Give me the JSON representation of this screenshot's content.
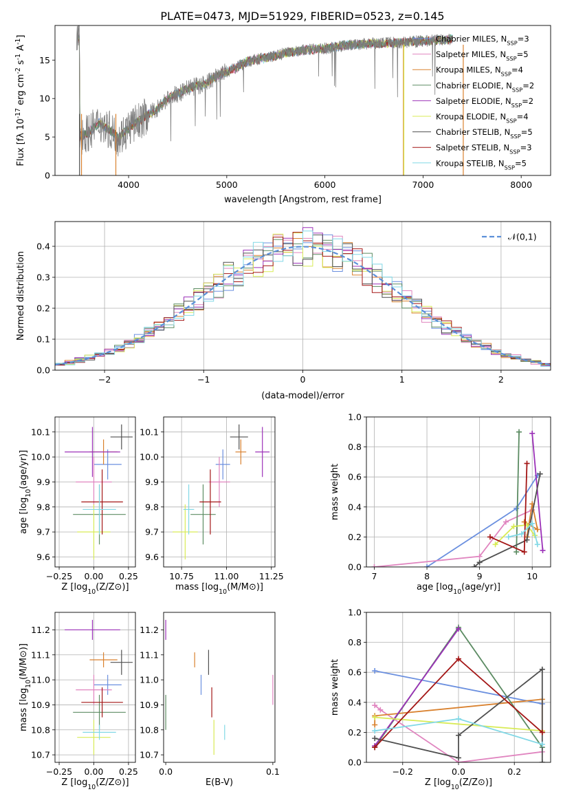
{
  "title": "PLATE=0473, MJD=51929, FIBERID=0523, z=0.145",
  "colors": {
    "Chabrier MILES": "#6a8fdf",
    "Salpeter MILES": "#e084bf",
    "Kroupa MILES": "#d9812e",
    "Chabrier ELODIE": "#5b8b62",
    "Salpeter ELODIE": "#9b30b8",
    "Kroupa ELODIE": "#d8eb55",
    "Chabrier STELIB": "#4f4f4f",
    "Salpeter STELIB": "#a31515",
    "Kroupa STELIB": "#81d8e6"
  },
  "chart_data": [
    {
      "id": "spectrum",
      "type": "line",
      "title": "PLATE=0473, MJD=51929, FIBERID=0523, z=0.145",
      "xlabel": "wavelength [Angstrom, rest frame]",
      "ylabel": "Flux [f$_\\lambda 10^{-17}$ erg cm$^{-2}$ s$^{-1}$ A$^{-1}$]",
      "xlim": [
        3250,
        8300
      ],
      "ylim": [
        0,
        19.5
      ],
      "xticks": [
        "4000",
        "5000",
        "6000",
        "7000",
        "8000"
      ],
      "yticks": [
        "0",
        "5",
        "10",
        "15"
      ],
      "grid": false,
      "legend": "top-right",
      "continuum": [
        [
          3500,
          5.0
        ],
        [
          3600,
          5.7
        ],
        [
          3700,
          6.8
        ],
        [
          3800,
          6.0
        ],
        [
          3900,
          4.9
        ],
        [
          4000,
          6.2
        ],
        [
          4100,
          7.0
        ],
        [
          4200,
          7.9
        ],
        [
          4300,
          8.8
        ],
        [
          4400,
          10.0
        ],
        [
          4500,
          10.6
        ],
        [
          4600,
          11.3
        ],
        [
          4800,
          12.0
        ],
        [
          4900,
          13.0
        ],
        [
          5000,
          13.5
        ],
        [
          5100,
          14.0
        ],
        [
          5200,
          14.8
        ],
        [
          5400,
          15.3
        ],
        [
          5600,
          15.9
        ],
        [
          5800,
          16.3
        ],
        [
          6000,
          16.5
        ],
        [
          6200,
          16.9
        ],
        [
          6400,
          17.1
        ],
        [
          6600,
          17.2
        ],
        [
          6800,
          17.3
        ],
        [
          7000,
          17.5
        ],
        [
          7200,
          17.6
        ],
        [
          7300,
          17.8
        ]
      ],
      "series": [
        {
          "name": "Chabrier MILES, N$_{SSP}$=3"
        },
        {
          "name": "Salpeter MILES, N$_{SSP}$=5"
        },
        {
          "name": "Kroupa MILES, N$_{SSP}$=4"
        },
        {
          "name": "Chabrier ELODIE, N$_{SSP}$=2"
        },
        {
          "name": "Salpeter ELODIE, N$_{SSP}$=2"
        },
        {
          "name": "Kroupa ELODIE, N$_{SSP}$=4"
        },
        {
          "name": "Chabrier STELIB, N$_{SSP}$=5"
        },
        {
          "name": "Salpeter STELIB, N$_{SSP}$=3"
        },
        {
          "name": "Kroupa STELIB, N$_{SSP}$=5"
        }
      ]
    },
    {
      "id": "residuals",
      "type": "line",
      "xlabel": "(data-model)/error",
      "ylabel": "Normed distribution",
      "xlim": [
        -2.5,
        2.5
      ],
      "ylim": [
        0,
        0.48
      ],
      "xticks": [
        "−2",
        "−1",
        "0",
        "1",
        "2"
      ],
      "yticks": [
        "0.0",
        "0.1",
        "0.2",
        "0.3",
        "0.4"
      ],
      "grid": true,
      "legend": "top-right",
      "legend_label": "$\\mathcal{N}(0,1)$",
      "bin_edges": [
        -2.5,
        2.5
      ],
      "bins": 50
    },
    {
      "id": "age-vs-Z",
      "type": "scatter",
      "xlabel": "Z [log$_{10}$(Z/Z$_\\odot$)]",
      "ylabel": "age  [log$_{10}$(age/yr)]",
      "xlim": [
        -0.28,
        0.3
      ],
      "ylim": [
        9.56,
        10.16
      ],
      "xticks": [
        "−0.25",
        "0.00",
        "0.25"
      ],
      "yticks": [
        "9.6",
        "9.7",
        "9.8",
        "9.9",
        "10.0",
        "10.1"
      ],
      "grid": true,
      "points": [
        {
          "s": "Chabrier MILES",
          "x": 0.1,
          "xe": 0.1,
          "y": 9.97,
          "ye": 0.06
        },
        {
          "s": "Salpeter MILES",
          "x": 0.0,
          "xe": 0.13,
          "y": 9.9,
          "ye": 0.1
        },
        {
          "s": "Kroupa MILES",
          "x": 0.07,
          "xe": 0.1,
          "y": 10.02,
          "ye": 0.05
        },
        {
          "s": "Chabrier ELODIE",
          "x": 0.04,
          "xe": 0.19,
          "y": 9.77,
          "ye": 0.12
        },
        {
          "s": "Salpeter ELODIE",
          "x": -0.01,
          "xe": 0.2,
          "y": 10.02,
          "ye": 0.1
        },
        {
          "s": "Kroupa ELODIE",
          "x": 0.0,
          "xe": 0.12,
          "y": 9.7,
          "ye": 0.11
        },
        {
          "s": "Chabrier STELIB",
          "x": 0.2,
          "xe": 0.08,
          "y": 10.08,
          "ye": 0.05
        },
        {
          "s": "Salpeter STELIB",
          "x": 0.06,
          "xe": 0.15,
          "y": 9.82,
          "ye": 0.13
        },
        {
          "s": "Kroupa STELIB",
          "x": 0.04,
          "xe": 0.12,
          "y": 9.79,
          "ye": 0.1
        }
      ]
    },
    {
      "id": "age-vs-mass",
      "type": "scatter",
      "xlabel": "mass [log$_{10}$(M/M$_\\odot$)]",
      "ylabel": "",
      "xlim": [
        10.65,
        11.27
      ],
      "ylim": [
        9.56,
        10.16
      ],
      "xticks": [
        "10.75",
        "11.00",
        "11.25"
      ],
      "yticks": [
        "9.6",
        "9.7",
        "9.8",
        "9.9",
        "10.0",
        "10.1"
      ],
      "grid": true,
      "points": [
        {
          "s": "Chabrier MILES",
          "x": 10.98,
          "xe": 0.04,
          "y": 9.97,
          "ye": 0.06
        },
        {
          "s": "Salpeter MILES",
          "x": 10.96,
          "xe": 0.06,
          "y": 9.9,
          "ye": 0.1
        },
        {
          "s": "Kroupa MILES",
          "x": 11.08,
          "xe": 0.03,
          "y": 10.02,
          "ye": 0.05
        },
        {
          "s": "Chabrier ELODIE",
          "x": 10.87,
          "xe": 0.07,
          "y": 9.77,
          "ye": 0.12
        },
        {
          "s": "Salpeter ELODIE",
          "x": 11.2,
          "xe": 0.04,
          "y": 10.02,
          "ye": 0.1
        },
        {
          "s": "Kroupa ELODIE",
          "x": 10.77,
          "xe": 0.07,
          "y": 9.7,
          "ye": 0.11
        },
        {
          "s": "Chabrier STELIB",
          "x": 11.07,
          "xe": 0.05,
          "y": 10.08,
          "ye": 0.05
        },
        {
          "s": "Salpeter STELIB",
          "x": 10.91,
          "xe": 0.06,
          "y": 9.82,
          "ye": 0.13
        },
        {
          "s": "Kroupa STELIB",
          "x": 10.79,
          "xe": 0.03,
          "y": 9.79,
          "ye": 0.1
        }
      ]
    },
    {
      "id": "weight-vs-age",
      "type": "line",
      "xlabel": "age  [log$_{10}$(age/yr)]",
      "ylabel": "mass weight",
      "xlim": [
        6.85,
        10.35
      ],
      "ylim": [
        0,
        1.0
      ],
      "xticks": [
        "7",
        "8",
        "9",
        "10"
      ],
      "yticks": [
        "0.0",
        "0.2",
        "0.4",
        "0.6",
        "0.8",
        "1.0"
      ],
      "grid": true,
      "series": [
        {
          "s": "Chabrier MILES",
          "pts": [
            [
              8.0,
              0.0
            ],
            [
              9.7,
              0.39
            ],
            [
              10.1,
              0.61
            ]
          ]
        },
        {
          "s": "Salpeter MILES",
          "pts": [
            [
              7.0,
              0.0
            ],
            [
              9.0,
              0.07
            ],
            [
              9.5,
              0.3
            ],
            [
              10.0,
              0.38
            ]
          ]
        },
        {
          "s": "Kroupa MILES",
          "pts": [
            [
              9.9,
              0.2
            ],
            [
              10.0,
              0.42
            ],
            [
              10.1,
              0.25
            ],
            [
              9.85,
              0.3
            ]
          ]
        },
        {
          "s": "Chabrier ELODIE",
          "pts": [
            [
              9.7,
              0.1
            ],
            [
              9.75,
              0.9
            ]
          ]
        },
        {
          "s": "Salpeter ELODIE",
          "pts": [
            [
              10.0,
              0.89
            ],
            [
              10.2,
              0.11
            ]
          ]
        },
        {
          "s": "Kroupa ELODIE",
          "pts": [
            [
              9.3,
              0.15
            ],
            [
              9.65,
              0.27
            ],
            [
              9.9,
              0.28
            ],
            [
              10.05,
              0.21
            ]
          ]
        },
        {
          "s": "Chabrier STELIB",
          "pts": [
            [
              8.9,
              0.0
            ],
            [
              9.0,
              0.03
            ],
            [
              9.9,
              0.18
            ],
            [
              10.15,
              0.62
            ]
          ]
        },
        {
          "s": "Salpeter STELIB",
          "pts": [
            [
              9.2,
              0.2
            ],
            [
              9.85,
              0.1
            ],
            [
              9.9,
              0.69
            ]
          ]
        },
        {
          "s": "Kroupa STELIB",
          "pts": [
            [
              9.55,
              0.2
            ],
            [
              9.8,
              0.22
            ],
            [
              10.0,
              0.29
            ],
            [
              10.1,
              0.15
            ]
          ]
        }
      ]
    },
    {
      "id": "mass-vs-Z",
      "type": "scatter",
      "xlabel": "Z [log$_{10}$(Z/Z$_\\odot$)]",
      "ylabel": "mass [log$_{10}$(M/M$_\\odot$)]",
      "xlim": [
        -0.28,
        0.3
      ],
      "ylim": [
        10.67,
        11.27
      ],
      "xticks": [
        "−0.25",
        "0.00",
        "0.25"
      ],
      "yticks": [
        "10.7",
        "10.8",
        "10.9",
        "11.0",
        "11.1",
        "11.2"
      ],
      "grid": true,
      "points": [
        {
          "s": "Chabrier MILES",
          "x": 0.1,
          "xe": 0.1,
          "y": 10.98,
          "ye": 0.04
        },
        {
          "s": "Salpeter MILES",
          "x": 0.0,
          "xe": 0.13,
          "y": 10.96,
          "ye": 0.06
        },
        {
          "s": "Kroupa MILES",
          "x": 0.07,
          "xe": 0.1,
          "y": 11.08,
          "ye": 0.03
        },
        {
          "s": "Chabrier ELODIE",
          "x": 0.04,
          "xe": 0.19,
          "y": 10.87,
          "ye": 0.07
        },
        {
          "s": "Salpeter ELODIE",
          "x": -0.01,
          "xe": 0.2,
          "y": 11.2,
          "ye": 0.04
        },
        {
          "s": "Kroupa ELODIE",
          "x": 0.0,
          "xe": 0.12,
          "y": 10.77,
          "ye": 0.07
        },
        {
          "s": "Chabrier STELIB",
          "x": 0.2,
          "xe": 0.08,
          "y": 11.07,
          "ye": 0.05
        },
        {
          "s": "Salpeter STELIB",
          "x": 0.06,
          "xe": 0.15,
          "y": 10.91,
          "ye": 0.06
        },
        {
          "s": "Kroupa STELIB",
          "x": 0.04,
          "xe": 0.12,
          "y": 10.79,
          "ye": 0.03
        }
      ]
    },
    {
      "id": "mass-vs-ebv",
      "type": "scatter",
      "xlabel": "E(B-V)",
      "ylabel": "",
      "xlim": [
        -0.002,
        0.102
      ],
      "ylim": [
        10.67,
        11.27
      ],
      "xticks": [
        "0.0",
        "0.1"
      ],
      "yticks": [
        "10.7",
        "10.8",
        "10.9",
        "11.0",
        "11.1",
        "11.2"
      ],
      "grid": false,
      "points": [
        {
          "s": "Chabrier MILES",
          "x": 0.033,
          "xe": 0,
          "y": 10.98,
          "ye": 0.04
        },
        {
          "s": "Salpeter MILES",
          "x": 0.1,
          "xe": 0,
          "y": 10.96,
          "ye": 0.06
        },
        {
          "s": "Kroupa MILES",
          "x": 0.027,
          "xe": 0,
          "y": 11.08,
          "ye": 0.03
        },
        {
          "s": "Chabrier ELODIE",
          "x": 0.0,
          "xe": 0,
          "y": 10.87,
          "ye": 0.07
        },
        {
          "s": "Salpeter ELODIE",
          "x": 0.0,
          "xe": 0,
          "y": 11.2,
          "ye": 0.04
        },
        {
          "s": "Kroupa ELODIE",
          "x": 0.045,
          "xe": 0,
          "y": 10.77,
          "ye": 0.07
        },
        {
          "s": "Chabrier STELIB",
          "x": 0.04,
          "xe": 0,
          "y": 11.07,
          "ye": 0.05
        },
        {
          "s": "Salpeter STELIB",
          "x": 0.043,
          "xe": 0,
          "y": 10.91,
          "ye": 0.06
        },
        {
          "s": "Kroupa STELIB",
          "x": 0.055,
          "xe": 0,
          "y": 10.79,
          "ye": 0.03
        }
      ]
    },
    {
      "id": "weight-vs-Z",
      "type": "line",
      "xlabel": "Z [log$_{10}$(Z/Z$_\\odot$)]",
      "ylabel": "mass weight",
      "xlim": [
        -0.33,
        0.33
      ],
      "ylim": [
        0,
        1.0
      ],
      "xticks": [
        "−0.2",
        "0.0",
        "0.2"
      ],
      "yticks": [
        "0.0",
        "0.2",
        "0.4",
        "0.6",
        "0.8",
        "1.0"
      ],
      "grid": true,
      "series": [
        {
          "s": "Chabrier MILES",
          "pts": [
            [
              -0.3,
              0.61
            ],
            [
              0.3,
              0.39
            ]
          ]
        },
        {
          "s": "Salpeter MILES",
          "pts": [
            [
              -0.3,
              0.38
            ],
            [
              -0.28,
              0.35
            ],
            [
              0.0,
              0.0
            ],
            [
              0.3,
              0.07
            ]
          ]
        },
        {
          "s": "Kroupa MILES",
          "pts": [
            [
              -0.3,
              0.25
            ],
            [
              -0.3,
              0.31
            ],
            [
              0.3,
              0.42
            ],
            [
              0.3,
              0.2
            ]
          ]
        },
        {
          "s": "Chabrier ELODIE",
          "pts": [
            [
              -0.3,
              0.1
            ],
            [
              0.0,
              0.9
            ],
            [
              0.3,
              0.1
            ]
          ]
        },
        {
          "s": "Salpeter ELODIE",
          "pts": [
            [
              -0.3,
              0.11
            ],
            [
              0.0,
              0.89
            ]
          ]
        },
        {
          "s": "Kroupa ELODIE",
          "pts": [
            [
              -0.3,
              0.3
            ],
            [
              0.3,
              0.21
            ]
          ]
        },
        {
          "s": "Chabrier STELIB",
          "pts": [
            [
              -0.3,
              0.16
            ],
            [
              0.0,
              0.03
            ],
            [
              0.0,
              0.18
            ],
            [
              0.3,
              0.62
            ],
            [
              0.3,
              0.0
            ]
          ]
        },
        {
          "s": "Salpeter STELIB",
          "pts": [
            [
              -0.3,
              0.1
            ],
            [
              0.0,
              0.69
            ],
            [
              0.3,
              0.2
            ]
          ]
        },
        {
          "s": "Kroupa STELIB",
          "pts": [
            [
              -0.3,
              0.21
            ],
            [
              0.0,
              0.29
            ],
            [
              0.3,
              0.12
            ]
          ]
        }
      ]
    }
  ]
}
